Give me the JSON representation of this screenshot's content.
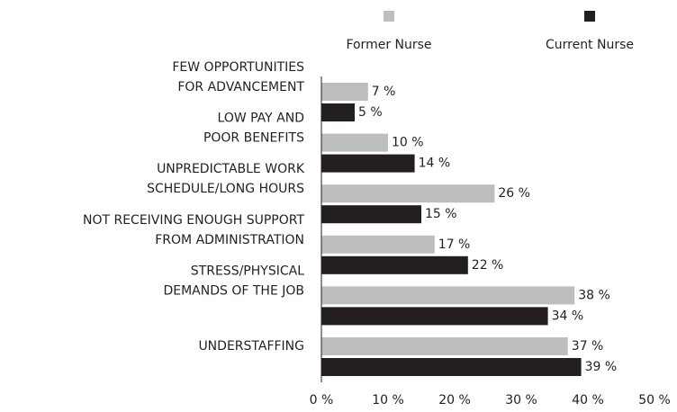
{
  "chart_data": {
    "type": "bar",
    "orientation": "horizontal",
    "categories": [
      [
        "FEW OPPORTUNITIES",
        "FOR ADVANCEMENT"
      ],
      [
        "LOW PAY AND",
        "POOR BENEFITS"
      ],
      [
        "UNPREDICTABLE WORK",
        "SCHEDULE/LONG HOURS"
      ],
      [
        "NOT RECEIVING ENOUGH SUPPORT",
        "FROM ADMINISTRATION"
      ],
      [
        "STRESS/PHYSICAL",
        "DEMANDS OF THE JOB"
      ],
      [
        "UNDERSTAFFING"
      ]
    ],
    "series": [
      {
        "name": "Former Nurse",
        "color": "#bcbec0",
        "values": [
          7,
          10,
          26,
          17,
          38,
          37
        ],
        "value_labels": [
          "7 %",
          "10 %",
          "26 %",
          "17 %",
          "38 %",
          "37 %"
        ]
      },
      {
        "name": "Current Nurse",
        "color": "#231f20",
        "values": [
          5,
          14,
          15,
          22,
          34,
          39
        ],
        "value_labels": [
          "5 %",
          "14 %",
          "15 %",
          "22 %",
          "34 %",
          "39 %"
        ]
      }
    ],
    "xlim": [
      0,
      50
    ],
    "xticks": [
      {
        "value": 0,
        "label": "0 %"
      },
      {
        "value": 10,
        "label": "10 %"
      },
      {
        "value": 20,
        "label": "20 %"
      },
      {
        "value": 30,
        "label": "30 %"
      },
      {
        "value": 40,
        "label": "40 %"
      },
      {
        "value": 50,
        "label": "50 %"
      }
    ],
    "legend": "top"
  }
}
